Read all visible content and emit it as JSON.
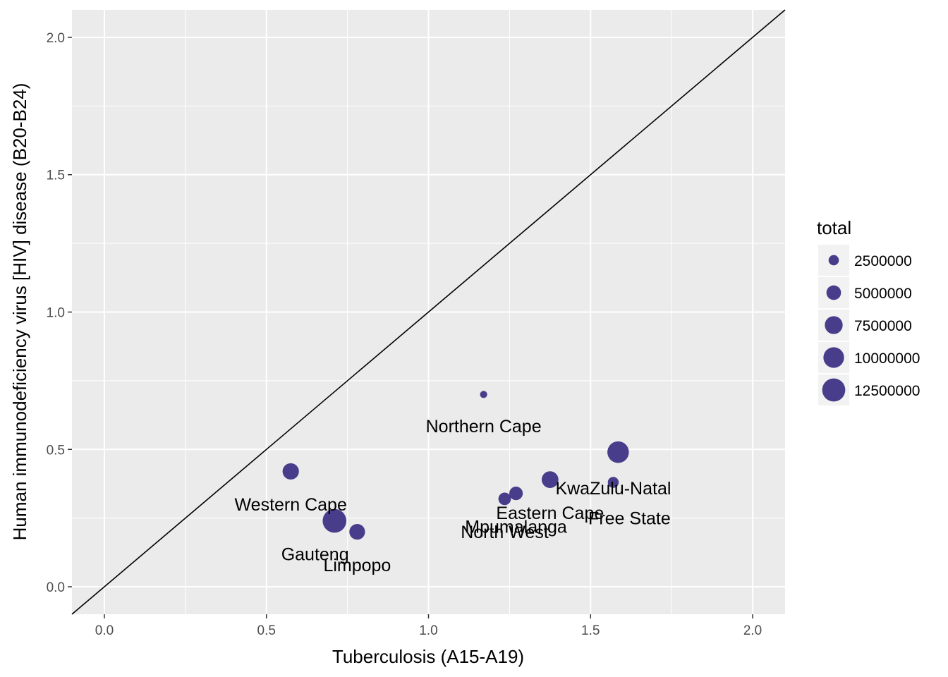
{
  "chart_data": {
    "type": "scatter",
    "xlabel": "Tuberculosis (A15-A19)",
    "ylabel": "Human immunodeficiency virus [HIV] disease (B20-B24)",
    "xlim": [
      -0.1,
      2.1
    ],
    "ylim": [
      -0.1,
      2.1
    ],
    "x_ticks": [
      0.0,
      0.5,
      1.0,
      1.5,
      2.0
    ],
    "y_ticks": [
      0.0,
      0.5,
      1.0,
      1.5,
      2.0
    ],
    "x_tick_labels": [
      "0.0",
      "0.5",
      "1.0",
      "1.5",
      "2.0"
    ],
    "y_tick_labels": [
      "0.0",
      "0.5",
      "1.0",
      "1.5",
      "2.0"
    ],
    "reference_line": "y = x",
    "grid": true,
    "point_color": "#483D8B",
    "panel_background": "#EBEBEB",
    "points": [
      {
        "label": "Northern Cape",
        "x": 1.17,
        "y": 0.7,
        "total": 1200000,
        "label_x": 1.17,
        "label_y": 0.585
      },
      {
        "label": "Western Cape",
        "x": 0.575,
        "y": 0.42,
        "total": 6300000,
        "label_x": 0.575,
        "label_y": 0.3
      },
      {
        "label": "Gauteng",
        "x": 0.71,
        "y": 0.24,
        "total": 13200000,
        "label_x": 0.65,
        "label_y": 0.12
      },
      {
        "label": "Limpopo",
        "x": 0.78,
        "y": 0.2,
        "total": 5800000,
        "label_x": 0.78,
        "label_y": 0.08
      },
      {
        "label": "KwaZulu-Natal",
        "x": 1.585,
        "y": 0.49,
        "total": 10900000,
        "label_x": 1.57,
        "label_y": 0.36
      },
      {
        "label": "Free State",
        "x": 1.57,
        "y": 0.38,
        "total": 2800000,
        "label_x": 1.62,
        "label_y": 0.25
      },
      {
        "label": "Eastern Cape",
        "x": 1.375,
        "y": 0.39,
        "total": 6600000,
        "label_x": 1.375,
        "label_y": 0.27
      },
      {
        "label": "Mpumalanga",
        "x": 1.27,
        "y": 0.34,
        "total": 4300000,
        "label_x": 1.27,
        "label_y": 0.22
      },
      {
        "label": "North West",
        "x": 1.235,
        "y": 0.32,
        "total": 3700000,
        "label_x": 1.235,
        "label_y": 0.2
      }
    ],
    "legend": {
      "title": "total",
      "position": "right",
      "entries": [
        {
          "label": "2500000",
          "value": 2500000
        },
        {
          "label": "5000000",
          "value": 5000000
        },
        {
          "label": "7500000",
          "value": 7500000
        },
        {
          "label": "10000000",
          "value": 10000000
        },
        {
          "label": "12500000",
          "value": 12500000
        }
      ]
    }
  }
}
